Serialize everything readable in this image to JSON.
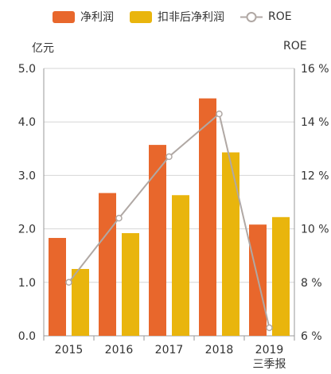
{
  "chart_data": {
    "type": "bar",
    "categories": [
      "2015",
      "2016",
      "2017",
      "2018",
      "2019"
    ],
    "category_sublabels": [
      "",
      "",
      "",
      "",
      "三季报"
    ],
    "series": [
      {
        "name": "净利润",
        "kind": "bar",
        "axis": "left",
        "color": "#e8672c",
        "values": [
          1.83,
          2.67,
          3.57,
          4.44,
          2.08
        ]
      },
      {
        "name": "扣非后净利润",
        "kind": "bar",
        "axis": "left",
        "color": "#e9b50d",
        "values": [
          1.25,
          1.92,
          2.63,
          3.43,
          2.22
        ]
      },
      {
        "name": "ROE",
        "kind": "line",
        "axis": "right",
        "color": "#b0a8a4",
        "values": [
          8.0,
          10.4,
          12.7,
          14.3,
          6.3
        ]
      }
    ],
    "left_axis": {
      "label": "亿元",
      "min": 0,
      "max": 5,
      "ticks": [
        "0.0",
        "1.0",
        "2.0",
        "3.0",
        "4.0",
        "5.0"
      ]
    },
    "right_axis": {
      "label": "ROE",
      "min": 6,
      "max": 16,
      "ticks": [
        "6 %",
        "8 %",
        "10 %",
        "12 %",
        "14 %",
        "16 %"
      ]
    },
    "grid": true,
    "legend_position": "top"
  }
}
